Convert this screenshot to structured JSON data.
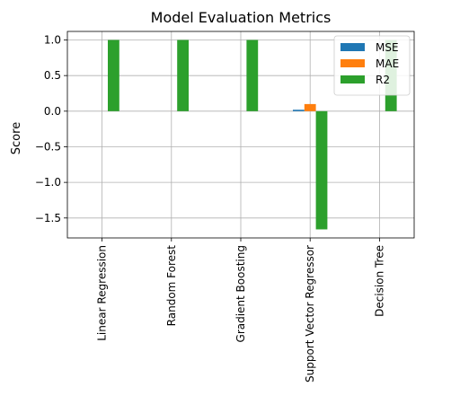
{
  "chart_data": {
    "type": "bar",
    "title": "Model Evaluation Metrics",
    "xlabel": "",
    "ylabel": "Score",
    "categories": [
      "Linear Regression",
      "Random Forest",
      "Gradient Boosting",
      "Support Vector Regressor",
      "Decision Tree"
    ],
    "series": [
      {
        "name": "MSE",
        "color": "#1f77b4",
        "values": [
          0.0,
          0.0,
          0.0,
          0.02,
          0.0
        ]
      },
      {
        "name": "MAE",
        "color": "#ff7f0e",
        "values": [
          0.0,
          0.0,
          0.0,
          0.1,
          0.0
        ]
      },
      {
        "name": "R2",
        "color": "#2ca02c",
        "values": [
          1.0,
          1.0,
          1.0,
          -1.66,
          1.0
        ]
      }
    ],
    "ylim": [
      -1.78,
      1.12
    ],
    "yticks": [
      1.0,
      0.5,
      0.0,
      -0.5,
      -1.0,
      -1.5
    ],
    "ytick_labels": [
      "1.0",
      "0.5",
      "0.0",
      "−0.5",
      "−1.0",
      "−1.5"
    ],
    "grid": true,
    "legend_position": "top-right"
  }
}
